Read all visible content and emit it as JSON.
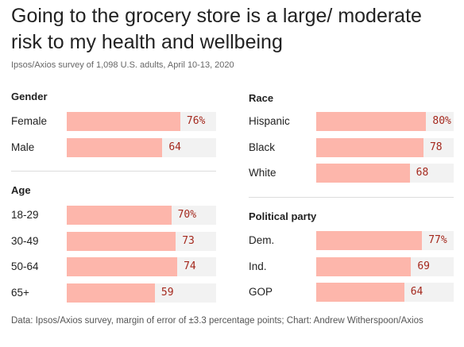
{
  "title": "Going to the grocery store is a large/ moderate risk to my health and wellbeing",
  "subtitle": "Ipsos/Axios survey of 1,098 U.S. adults, April 10-13, 2020",
  "footer": "Data: Ipsos/Axios survey, margin of error of ±3.3 percentage points; Chart: Andrew Witherspoon/Axios",
  "colors": {
    "bar": "#fdb6ab",
    "track": "#f2f2f2",
    "value": "#a4281d"
  },
  "chart_data": {
    "type": "bar",
    "orientation": "horizontal",
    "unit": "%",
    "xlim": [
      0,
      100
    ],
    "groups": [
      {
        "name": "Gender",
        "categories": [
          "Female",
          "Male"
        ],
        "values": [
          76,
          64
        ],
        "value_labels": [
          "76%",
          "64"
        ]
      },
      {
        "name": "Age",
        "categories": [
          "18-29",
          "30-49",
          "50-64",
          "65+"
        ],
        "values": [
          70,
          73,
          74,
          59
        ],
        "value_labels": [
          "70%",
          "73",
          "74",
          "59"
        ]
      },
      {
        "name": "Race",
        "categories": [
          "Hispanic",
          "Black",
          "White"
        ],
        "values": [
          80,
          78,
          68
        ],
        "value_labels": [
          "80%",
          "78",
          "68"
        ]
      },
      {
        "name": "Political party",
        "categories": [
          "Dem.",
          "Ind.",
          "GOP"
        ],
        "values": [
          77,
          69,
          64
        ],
        "value_labels": [
          "77%",
          "69",
          "64"
        ]
      }
    ]
  }
}
